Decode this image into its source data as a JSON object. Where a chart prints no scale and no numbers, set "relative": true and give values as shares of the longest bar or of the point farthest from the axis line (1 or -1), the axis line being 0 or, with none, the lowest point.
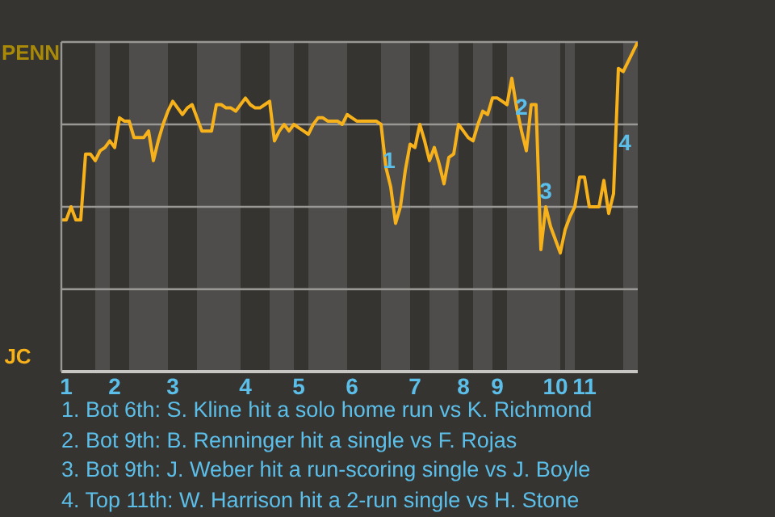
{
  "chart_data": {
    "type": "line",
    "relative": true,
    "categories": [
      null,
      "1",
      null,
      null,
      null,
      null,
      null,
      null,
      null,
      null,
      null,
      "2",
      null,
      null,
      null,
      null,
      null,
      null,
      null,
      null,
      null,
      null,
      null,
      "3",
      null,
      null,
      null,
      null,
      null,
      null,
      null,
      null,
      null,
      null,
      null,
      null,
      null,
      null,
      "4",
      null,
      null,
      null,
      null,
      null,
      null,
      null,
      null,
      null,
      null,
      "5",
      null,
      null,
      null,
      null,
      null,
      null,
      null,
      null,
      null,
      null,
      "6",
      null,
      null,
      null,
      null,
      null,
      null,
      null,
      null,
      null,
      null,
      null,
      null,
      "7",
      null,
      null,
      null,
      null,
      null,
      null,
      null,
      null,
      null,
      "8",
      null,
      null,
      null,
      null,
      null,
      null,
      "9",
      null,
      null,
      null,
      null,
      null,
      null,
      null,
      null,
      null,
      null,
      null,
      "10",
      null,
      null,
      null,
      null,
      null,
      "11",
      null,
      null,
      null,
      null,
      null,
      null,
      null,
      null,
      null,
      null,
      null
    ],
    "series": [
      {
        "color": "#f7b21b",
        "values": [
          0.46,
          0.46,
          0.5,
          0.46,
          0.46,
          0.66,
          0.66,
          0.64,
          0.67,
          0.68,
          0.7,
          0.68,
          0.77,
          0.76,
          0.76,
          0.71,
          0.71,
          0.71,
          0.73,
          0.64,
          0.7,
          0.75,
          0.79,
          0.82,
          0.8,
          0.78,
          0.8,
          0.81,
          0.77,
          0.73,
          0.73,
          0.73,
          0.81,
          0.81,
          0.8,
          0.8,
          0.79,
          0.81,
          0.83,
          0.81,
          0.8,
          0.8,
          0.81,
          0.82,
          0.7,
          0.73,
          0.75,
          0.73,
          0.75,
          0.74,
          0.73,
          0.72,
          0.75,
          0.77,
          0.77,
          0.76,
          0.76,
          0.76,
          0.75,
          0.78,
          0.77,
          0.76,
          0.76,
          0.76,
          0.76,
          0.76,
          0.75,
          0.62,
          0.56,
          0.45,
          0.5,
          0.61,
          0.69,
          0.68,
          0.75,
          0.7,
          0.64,
          0.68,
          0.63,
          0.57,
          0.65,
          0.66,
          0.75,
          0.73,
          0.71,
          0.7,
          0.75,
          0.79,
          0.78,
          0.83,
          0.83,
          0.82,
          0.81,
          0.89,
          0.8,
          0.73,
          0.67,
          0.81,
          0.81,
          0.37,
          0.5,
          0.44,
          0.4,
          0.36,
          0.43,
          0.47,
          0.5,
          0.59,
          0.59,
          0.5,
          0.5,
          0.5,
          0.58,
          0.48,
          0.54,
          0.92,
          0.91,
          0.94,
          0.97,
          1
        ]
      }
    ],
    "grid": "y",
    "annotations": [
      "PENN",
      "JC",
      "1",
      "2",
      "3",
      "4",
      "1. Bot 6th: S. Kline hit a solo home run vs K. Richmond",
      "2. Bot 9th: B. Renninger hit a single vs F. Rojas",
      "3. Bot 9th: J. Weber hit a run-scoring single vs J. Boyle",
      "4. Top 11th: W. Harrison hit a 2-run single vs H. Stone"
    ]
  }
}
